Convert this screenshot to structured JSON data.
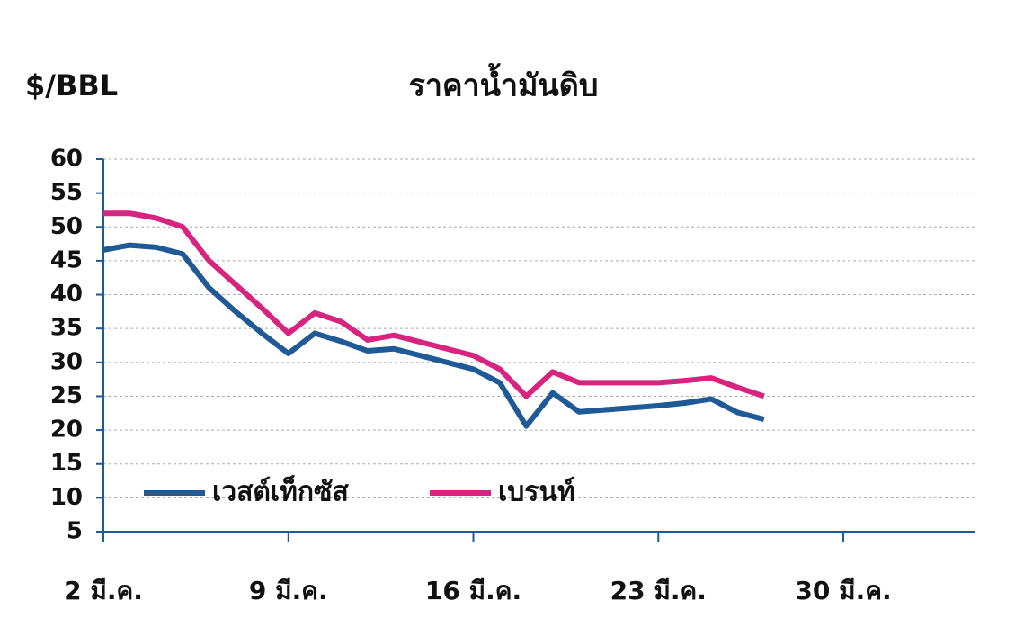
{
  "chart_data": {
    "type": "line",
    "title": "ราคาน้ำมันดิบ",
    "y_label": "$/BBL",
    "x": [
      2,
      3,
      4,
      5,
      6,
      7,
      8,
      9,
      10,
      11,
      12,
      13,
      14,
      15,
      16,
      17,
      18,
      19,
      20,
      21,
      22,
      23,
      24,
      25,
      26,
      27
    ],
    "xlim": [
      2,
      35
    ],
    "xticks": [
      {
        "value": 2,
        "label": "2 มี.ค."
      },
      {
        "value": 9,
        "label": "9 มี.ค."
      },
      {
        "value": 16,
        "label": "16 มี.ค."
      },
      {
        "value": 23,
        "label": "23 มี.ค."
      },
      {
        "value": 30,
        "label": "30 มี.ค."
      }
    ],
    "ylim": [
      5,
      60
    ],
    "yticks": [
      5,
      10,
      15,
      20,
      25,
      30,
      35,
      40,
      45,
      50,
      55,
      60
    ],
    "grid": true,
    "series": [
      {
        "name": "เวสต์เท็กซัส",
        "color": "#1f5a96",
        "values": [
          46.6,
          47.3,
          47,
          46,
          41,
          37.5,
          34.3,
          31.3,
          34.3,
          33.1,
          31.7,
          32,
          31,
          30,
          29,
          27,
          20.6,
          25.5,
          22.7,
          23,
          23.3,
          23.6,
          24,
          24.6,
          22.6,
          21.6
        ]
      },
      {
        "name": "เบรนท์",
        "color": "#d6247f",
        "values": [
          52,
          52,
          51.3,
          50,
          45,
          41.5,
          38,
          34.3,
          37.3,
          36,
          33.3,
          34,
          33,
          32,
          31,
          29,
          25,
          28.6,
          27,
          27,
          27,
          27,
          27.3,
          27.7,
          26.3,
          25
        ]
      }
    ]
  }
}
